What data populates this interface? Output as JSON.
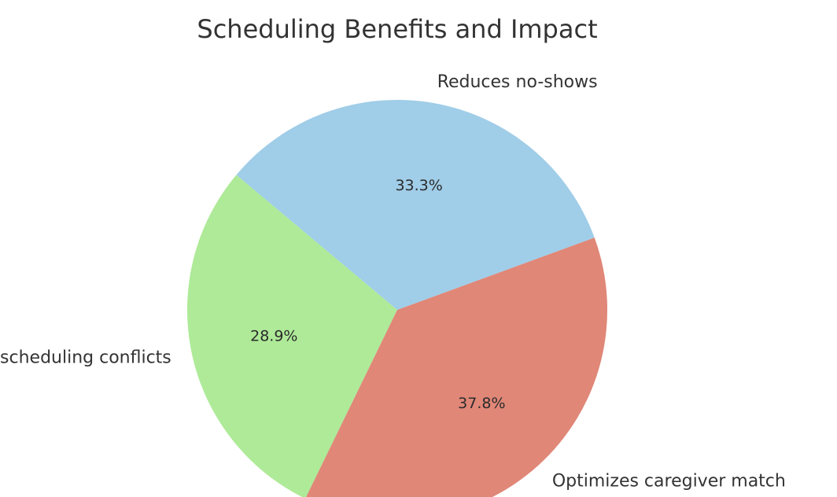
{
  "chart_data": {
    "type": "pie",
    "title": "Scheduling Benefits and Impact",
    "slices": [
      {
        "label": "Minimizes scheduling conflicts",
        "value": 28.9,
        "pct_label": "28.9%",
        "color": "#aeea98"
      },
      {
        "label": "Optimizes caregiver match",
        "value": 37.8,
        "pct_label": "37.8%",
        "color": "#e08778"
      },
      {
        "label": "Reduces no-shows",
        "value": 33.3,
        "pct_label": "33.3%",
        "color": "#a0cde8"
      }
    ]
  }
}
